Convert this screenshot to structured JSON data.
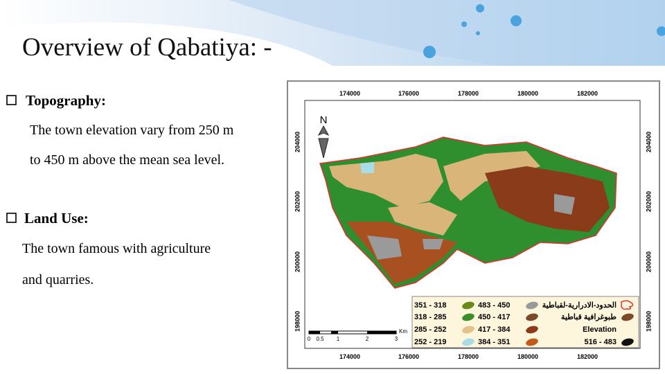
{
  "title": "Overview of Qabatiya: -",
  "sections": [
    {
      "heading": "Topography:",
      "lines": [
        "The town elevation vary from 250 m",
        "to 450 m above the mean sea level."
      ]
    },
    {
      "heading": "Land Use:",
      "lines": [
        "The town famous with agriculture",
        "and quarries."
      ]
    }
  ],
  "map": {
    "x_labels": [
      "174000",
      "176000",
      "178000",
      "180000",
      "182000"
    ],
    "y_labels": [
      "204000",
      "202000",
      "200000",
      "198000"
    ],
    "north": "N",
    "scale": {
      "labels": [
        "0",
        "0.5",
        "1",
        "2",
        "3"
      ],
      "unit": "Km"
    },
    "legend": {
      "columns": [
        [
          "351 - 318",
          "318 - 285",
          "285 - 252",
          "252 - 219"
        ],
        [
          "483 - 450",
          "450 - 417",
          "417 - 384",
          "384 - 351"
        ],
        [
          "الحدود-الادرارية-لقباطية",
          "طبوغرافية قباطية",
          "Elevation",
          "516 - 483"
        ]
      ]
    }
  }
}
